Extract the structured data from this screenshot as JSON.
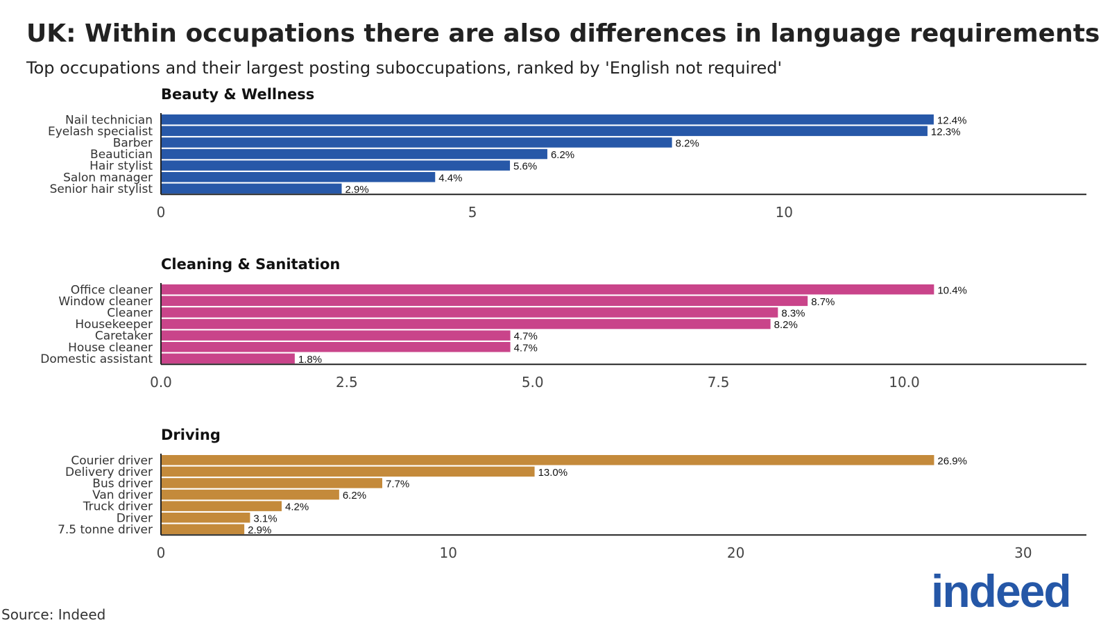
{
  "header": {
    "title": "UK: Within occupations there are also differences in language requirements",
    "subtitle": "Top occupations and their largest posting suboccupations, ranked by 'English not required'"
  },
  "footer": {
    "source": "Source: Indeed",
    "logo_text": "indeed"
  },
  "colors": {
    "beauty": "#2758a8",
    "cleaning": "#c9448a",
    "driving": "#c48a3b",
    "logo": "#2557a7"
  },
  "chart_data": [
    {
      "type": "bar",
      "orientation": "horizontal",
      "title": "Beauty & Wellness",
      "categories": [
        "Nail technician",
        "Eyelash specialist",
        "Barber",
        "Beautician",
        "Hair stylist",
        "Salon manager",
        "Senior hair stylist"
      ],
      "values": [
        12.4,
        12.3,
        8.2,
        6.2,
        5.6,
        4.4,
        2.9
      ],
      "value_labels": [
        "12.4%",
        "12.3%",
        "8.2%",
        "6.2%",
        "5.6%",
        "4.4%",
        "2.9%"
      ],
      "xlim": [
        0,
        14.85
      ],
      "ticks": [
        0,
        5,
        10
      ],
      "tick_labels": [
        "0",
        "5",
        "10"
      ],
      "grid": false
    },
    {
      "type": "bar",
      "orientation": "horizontal",
      "title": "Cleaning & Sanitation",
      "categories": [
        "Office cleaner",
        "Window cleaner",
        "Cleaner",
        "Housekeeper",
        "Caretaker",
        "House cleaner",
        "Domestic assistant"
      ],
      "values": [
        10.4,
        8.7,
        8.3,
        8.2,
        4.7,
        4.7,
        1.8
      ],
      "value_labels": [
        "10.4%",
        "8.7%",
        "8.3%",
        "8.2%",
        "4.7%",
        "4.7%",
        "1.8%"
      ],
      "xlim": [
        0,
        12.45
      ],
      "ticks": [
        0,
        2.5,
        5,
        7.5,
        10
      ],
      "tick_labels": [
        "0.0",
        "2.5",
        "5.0",
        "7.5",
        "10.0"
      ],
      "grid": false
    },
    {
      "type": "bar",
      "orientation": "horizontal",
      "title": "Driving",
      "categories": [
        "Courier driver",
        "Delivery driver",
        "Bus driver",
        "Van driver",
        "Truck driver",
        "Driver",
        "7.5 tonne driver"
      ],
      "values": [
        26.9,
        13.0,
        7.7,
        6.2,
        4.2,
        3.1,
        2.9
      ],
      "value_labels": [
        "26.9%",
        "13.0%",
        "7.7%",
        "6.2%",
        "4.2%",
        "3.1%",
        "2.9%"
      ],
      "xlim": [
        0,
        32.2
      ],
      "ticks": [
        0,
        10,
        20,
        30
      ],
      "tick_labels": [
        "0",
        "10",
        "20",
        "30"
      ],
      "grid": false
    }
  ]
}
